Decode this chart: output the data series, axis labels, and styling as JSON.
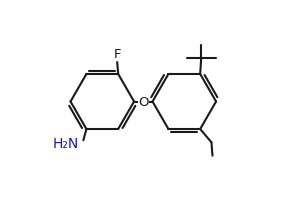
{
  "background": "#ffffff",
  "line_color": "#1a1a1a",
  "line_width": 1.5,
  "label_F": "F",
  "label_O": "O",
  "label_NH2": "H₂N",
  "label_color_NH2": "#1a1aaa",
  "font_size": 9.5,
  "r": 0.155,
  "r1cx": 0.26,
  "r1cy": 0.5,
  "r2cx": 0.66,
  "r2cy": 0.5
}
